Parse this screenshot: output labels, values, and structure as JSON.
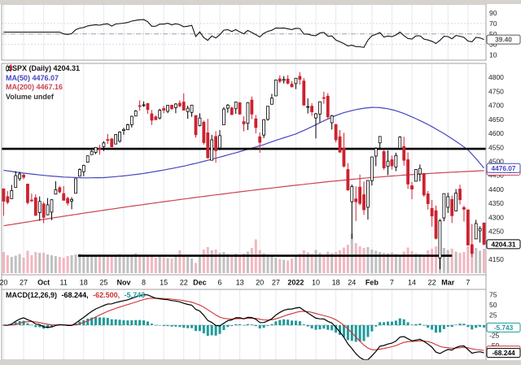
{
  "window": {
    "bg": "#ffffff",
    "chrome_color": "#d6d3ce"
  },
  "legend": {
    "symbol_line": "$SPX (Daily) 4204.31",
    "ma50_label": "MA(50) 4476.07",
    "ma200_label": "MA(200) 4467.16",
    "volume_label": "Volume undef",
    "macd_label": "MACD(12,26,9)",
    "macd_value": "-68.244,",
    "signal_value": "-62.500,",
    "hist_value": "-5.743"
  },
  "badges": {
    "rsi": "39.40",
    "ma50": "4476.07",
    "ma200": "4467.16",
    "close": "4204.31",
    "macd_hist": "-5.743",
    "macd_signal": "-62.500",
    "macd_line": "-68.244"
  },
  "colors": {
    "up": "#000000",
    "up_fill": "#ffffff",
    "down": "#cc2230",
    "ma50": "#4646c0",
    "ma200": "#cc4450",
    "vol_up": "#b5b5b5",
    "vol_down": "#f0a9b4",
    "hist": "#1f9a9a",
    "macd": "#000000",
    "signal": "#cc3333",
    "grid": "#e6e8f2",
    "panel_border": "#a0a0a0",
    "text": "#222222",
    "badge_rsi": "#555555",
    "trendline": "#000000"
  },
  "axes": {
    "price_ticks": [
      4800,
      4750,
      4700,
      4650,
      4600,
      4550,
      4500,
      4450,
      4400,
      4350,
      4300,
      4250,
      4200,
      4150
    ],
    "date_ticks": [
      {
        "i": 0,
        "l": "20"
      },
      {
        "i": 5,
        "l": "27"
      },
      {
        "i": 10,
        "l": "Oct",
        "b": 1
      },
      {
        "i": 15,
        "l": "11"
      },
      {
        "i": 20,
        "l": "18"
      },
      {
        "i": 25,
        "l": "25"
      },
      {
        "i": 30,
        "l": "Nov",
        "b": 1
      },
      {
        "i": 35,
        "l": "8"
      },
      {
        "i": 40,
        "l": "15"
      },
      {
        "i": 45,
        "l": "22"
      },
      {
        "i": 49,
        "l": "Dec",
        "b": 1
      },
      {
        "i": 54,
        "l": "6"
      },
      {
        "i": 59,
        "l": "13"
      },
      {
        "i": 64,
        "l": "20"
      },
      {
        "i": 68,
        "l": "27"
      },
      {
        "i": 73,
        "l": "2022",
        "b": 1
      },
      {
        "i": 78,
        "l": "10"
      },
      {
        "i": 83,
        "l": "18"
      },
      {
        "i": 87,
        "l": "24"
      },
      {
        "i": 92,
        "l": "Feb",
        "b": 1
      },
      {
        "i": 97,
        "l": "7"
      },
      {
        "i": 102,
        "l": "14"
      },
      {
        "i": 107,
        "l": "22"
      },
      {
        "i": 111,
        "l": "Mar",
        "b": 1
      },
      {
        "i": 116,
        "l": "7"
      }
    ]
  },
  "chart_data": [
    {
      "panel": "top",
      "type": "line",
      "indicator": "RSI(14)",
      "derived_from": "main candle closes",
      "last_value": 39.4,
      "ticks": [
        90,
        70,
        50,
        30,
        10
      ],
      "ref_lines": {
        "dashdot": 50,
        "dashed": [
          70,
          30
        ]
      },
      "ylim": [
        0,
        107
      ]
    },
    {
      "panel": "main",
      "type": "candlestick",
      "symbol": "$SPX",
      "timeframe": "Daily",
      "last_price": 4204.31,
      "ylim": [
        4095,
        4850
      ],
      "candles": [
        [
          4402,
          4402,
          4306,
          4358
        ],
        [
          4374,
          4394,
          4347,
          4354
        ],
        [
          4367,
          4416,
          4367,
          4396
        ],
        [
          4407,
          4465,
          4407,
          4449
        ],
        [
          4438,
          4463,
          4430,
          4455
        ],
        [
          4451,
          4457,
          4436,
          4443
        ],
        [
          4419,
          4419,
          4346,
          4353
        ],
        [
          4362,
          4385,
          4355,
          4359
        ],
        [
          4370,
          4382,
          4306,
          4307
        ],
        [
          4317,
          4375,
          4288,
          4357
        ],
        [
          4348,
          4355,
          4279,
          4300
        ],
        [
          4309,
          4369,
          4309,
          4345
        ],
        [
          4319,
          4365,
          4290,
          4363
        ],
        [
          4383,
          4429,
          4383,
          4399
        ],
        [
          4406,
          4412,
          4386,
          4391
        ],
        [
          4385,
          4412,
          4361,
          4361
        ],
        [
          4368,
          4374,
          4342,
          4351
        ],
        [
          4358,
          4372,
          4329,
          4364
        ],
        [
          4386,
          4439,
          4386,
          4438
        ],
        [
          4447,
          4475,
          4447,
          4471
        ],
        [
          4463,
          4488,
          4447,
          4486
        ],
        [
          4497,
          4520,
          4496,
          4520
        ],
        [
          4524,
          4540,
          4524,
          4536
        ],
        [
          4532,
          4551,
          4526,
          4550
        ],
        [
          4546,
          4559,
          4524,
          4545
        ],
        [
          4553,
          4572,
          4537,
          4566
        ],
        [
          4578,
          4598,
          4562,
          4575
        ],
        [
          4580,
          4584,
          4551,
          4552
        ],
        [
          4562,
          4597,
          4562,
          4596
        ],
        [
          4572,
          4608,
          4567,
          4605
        ],
        [
          4610,
          4620,
          4595,
          4614
        ],
        [
          4613,
          4635,
          4613,
          4631
        ],
        [
          4631,
          4663,
          4621,
          4661
        ],
        [
          4662,
          4683,
          4662,
          4680
        ],
        [
          4699,
          4718,
          4681,
          4698
        ],
        [
          4701,
          4714,
          4695,
          4702
        ],
        [
          4707,
          4708,
          4670,
          4685
        ],
        [
          4670,
          4684,
          4630,
          4647
        ],
        [
          4659,
          4664,
          4648,
          4649
        ],
        [
          4655,
          4688,
          4650,
          4683
        ],
        [
          4689,
          4698,
          4672,
          4683
        ],
        [
          4679,
          4701,
          4672,
          4700
        ],
        [
          4701,
          4701,
          4684,
          4688
        ],
        [
          4692,
          4708,
          4672,
          4705
        ],
        [
          4708,
          4718,
          4694,
          4698
        ],
        [
          4712,
          4743,
          4682,
          4683
        ],
        [
          4678,
          4699,
          4652,
          4690
        ],
        [
          4675,
          4702,
          4659,
          4701
        ],
        [
          4664,
          4664,
          4585,
          4595
        ],
        [
          4628,
          4672,
          4625,
          4655
        ],
        [
          4640,
          4646,
          4560,
          4567
        ],
        [
          4602,
          4652,
          4510,
          4513
        ],
        [
          4504,
          4595,
          4504,
          4577
        ],
        [
          4589,
          4608,
          4495,
          4538
        ],
        [
          4548,
          4612,
          4540,
          4592
        ],
        [
          4631,
          4694,
          4631,
          4687
        ],
        [
          4690,
          4705,
          4674,
          4701
        ],
        [
          4691,
          4695,
          4668,
          4667
        ],
        [
          4688,
          4713,
          4670,
          4712
        ],
        [
          4710,
          4711,
          4667,
          4669
        ],
        [
          4642,
          4661,
          4607,
          4634
        ],
        [
          4636,
          4712,
          4612,
          4710
        ],
        [
          4719,
          4732,
          4651,
          4669
        ],
        [
          4652,
          4666,
          4600,
          4621
        ],
        [
          4588,
          4603,
          4531,
          4568
        ],
        [
          4594,
          4651,
          4583,
          4649
        ],
        [
          4650,
          4697,
          4645,
          4697
        ],
        [
          4704,
          4741,
          4704,
          4726
        ],
        [
          4734,
          4791,
          4734,
          4791
        ],
        [
          4795,
          4807,
          4780,
          4786
        ],
        [
          4789,
          4805,
          4778,
          4793
        ],
        [
          4794,
          4808,
          4775,
          4779
        ],
        [
          4776,
          4787,
          4765,
          4766
        ],
        [
          4778,
          4797,
          4758,
          4797
        ],
        [
          4804,
          4819,
          4774,
          4793
        ],
        [
          4787,
          4798,
          4700,
          4701
        ],
        [
          4693,
          4725,
          4671,
          4696
        ],
        [
          4697,
          4708,
          4663,
          4677
        ],
        [
          4655,
          4673,
          4582,
          4670
        ],
        [
          4669,
          4714,
          4639,
          4713
        ],
        [
          4728,
          4749,
          4706,
          4726
        ],
        [
          4733,
          4744,
          4650,
          4659
        ],
        [
          4638,
          4666,
          4614,
          4663
        ],
        [
          4632,
          4632,
          4568,
          4577
        ],
        [
          4588,
          4612,
          4531,
          4533
        ],
        [
          4547,
          4602,
          4478,
          4483
        ],
        [
          4471,
          4494,
          4395,
          4398
        ],
        [
          4356,
          4417,
          4223,
          4410
        ],
        [
          4366,
          4411,
          4287,
          4356
        ],
        [
          4408,
          4453,
          4343,
          4350
        ],
        [
          4381,
          4428,
          4309,
          4327
        ],
        [
          4336,
          4432,
          4292,
          4432
        ],
        [
          4431,
          4516,
          4414,
          4516
        ],
        [
          4519,
          4550,
          4483,
          4546
        ],
        [
          4566,
          4589,
          4544,
          4589
        ],
        [
          4535,
          4542,
          4470,
          4477
        ],
        [
          4482,
          4539,
          4451,
          4501
        ],
        [
          4506,
          4521,
          4471,
          4484
        ],
        [
          4480,
          4531,
          4465,
          4521
        ],
        [
          4547,
          4590,
          4547,
          4587
        ],
        [
          4553,
          4588,
          4485,
          4504
        ],
        [
          4506,
          4532,
          4402,
          4419
        ],
        [
          4413,
          4427,
          4365,
          4401
        ],
        [
          4429,
          4472,
          4429,
          4471
        ],
        [
          4455,
          4489,
          4429,
          4475
        ],
        [
          4457,
          4457,
          4374,
          4380
        ],
        [
          4384,
          4394,
          4328,
          4349
        ],
        [
          4332,
          4362,
          4267,
          4305
        ],
        [
          4324,
          4342,
          4221,
          4225
        ],
        [
          4155,
          4294,
          4115,
          4288
        ],
        [
          4298,
          4385,
          4286,
          4385
        ],
        [
          4336,
          4388,
          4316,
          4374
        ],
        [
          4364,
          4378,
          4280,
          4306
        ],
        [
          4323,
          4401,
          4322,
          4387
        ],
        [
          4401,
          4417,
          4346,
          4363
        ],
        [
          4335,
          4342,
          4285,
          4329
        ],
        [
          4327,
          4327,
          4200,
          4201
        ],
        [
          4202,
          4276,
          4158,
          4171
        ],
        [
          4223,
          4291,
          4223,
          4278
        ],
        [
          4252,
          4268,
          4210,
          4260
        ],
        [
          4280,
          4281,
          4200,
          4204.31
        ]
      ],
      "volume": [
        0.52,
        0.44,
        0.4,
        0.43,
        0.47,
        0.38,
        0.55,
        0.44,
        0.52,
        0.5,
        0.5,
        0.46,
        0.44,
        0.42,
        0.4,
        0.38,
        0.42,
        0.44,
        0.46,
        0.48,
        0.42,
        0.44,
        0.4,
        0.42,
        0.46,
        0.4,
        0.43,
        0.45,
        0.41,
        0.47,
        0.43,
        0.42,
        0.46,
        0.49,
        0.45,
        0.4,
        0.43,
        0.45,
        0.38,
        0.41,
        0.39,
        0.37,
        0.36,
        0.42,
        0.56,
        0.44,
        0.4,
        0.36,
        0.25,
        0.42,
        0.58,
        0.64,
        0.56,
        0.58,
        0.5,
        0.52,
        0.47,
        0.45,
        0.48,
        0.46,
        0.48,
        0.53,
        0.62,
        0.83,
        0.57,
        0.49,
        0.46,
        0.41,
        0.38,
        0.35,
        0.33,
        0.31,
        0.36,
        0.45,
        0.48,
        0.56,
        0.51,
        0.47,
        0.57,
        0.5,
        0.46,
        0.53,
        0.49,
        0.52,
        0.56,
        0.63,
        0.7,
        0.97,
        0.74,
        0.66,
        0.62,
        0.64,
        0.58,
        0.55,
        0.52,
        0.5,
        0.49,
        0.51,
        0.47,
        0.45,
        0.53,
        0.63,
        0.54,
        0.49,
        0.47,
        0.46,
        0.56,
        0.6,
        0.66,
        0.88,
        0.62,
        0.57,
        0.6,
        0.53,
        0.5,
        0.52,
        0.66,
        0.72,
        0.62,
        0.55,
        0.6
      ],
      "ma50_points": [
        [
          0,
          4468
        ],
        [
          5,
          4458
        ],
        [
          10,
          4450
        ],
        [
          15,
          4444
        ],
        [
          20,
          4441
        ],
        [
          25,
          4442
        ],
        [
          30,
          4448
        ],
        [
          35,
          4457
        ],
        [
          40,
          4469
        ],
        [
          45,
          4483
        ],
        [
          50,
          4500
        ],
        [
          55,
          4519
        ],
        [
          60,
          4539
        ],
        [
          65,
          4560
        ],
        [
          68,
          4575
        ],
        [
          71,
          4589
        ],
        [
          73,
          4598
        ],
        [
          76,
          4617
        ],
        [
          80,
          4645
        ],
        [
          83,
          4664
        ],
        [
          85,
          4674
        ],
        [
          88,
          4685
        ],
        [
          90,
          4690
        ],
        [
          92,
          4693
        ],
        [
          94,
          4692
        ],
        [
          96,
          4688
        ],
        [
          98,
          4681
        ],
        [
          100,
          4671
        ],
        [
          102,
          4659
        ],
        [
          104,
          4646
        ],
        [
          106,
          4632
        ],
        [
          108,
          4616
        ],
        [
          110,
          4599
        ],
        [
          112,
          4581
        ],
        [
          114,
          4562
        ],
        [
          116,
          4541
        ],
        [
          118,
          4510
        ],
        [
          120,
          4476
        ]
      ],
      "ma200_points": [
        [
          0,
          4270
        ],
        [
          10,
          4293
        ],
        [
          20,
          4315
        ],
        [
          30,
          4336
        ],
        [
          40,
          4356
        ],
        [
          50,
          4375
        ],
        [
          60,
          4393
        ],
        [
          70,
          4410
        ],
        [
          80,
          4426
        ],
        [
          90,
          4440
        ],
        [
          100,
          4451
        ],
        [
          110,
          4460
        ],
        [
          120,
          4467
        ]
      ],
      "ma50_last": 4476.07,
      "ma200_last": 4467.16,
      "annotations": [
        {
          "type": "hline",
          "price": 4545,
          "from_index": 0,
          "to_index": 121,
          "stroke_width": 2.6
        },
        {
          "type": "hline",
          "price": 4163,
          "from_index": 19,
          "to_index": 112,
          "stroke_width": 2.6
        }
      ]
    },
    {
      "panel": "bottom",
      "type": "macd",
      "params": "12,26,9",
      "derived_from": "main candle closes",
      "last_values": {
        "macd": -68.244,
        "signal": -62.5,
        "hist": -5.743
      },
      "ticks": [
        75,
        50,
        25,
        0,
        -25,
        -50
      ],
      "ylim": [
        -85,
        85
      ]
    }
  ]
}
